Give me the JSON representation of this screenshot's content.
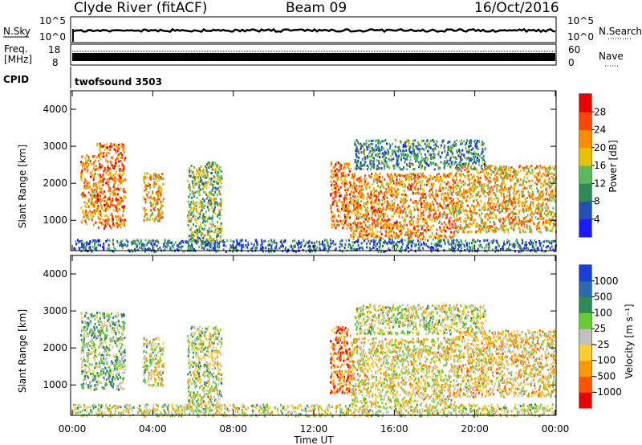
{
  "header": {
    "station": "Clyde River (fitACF)",
    "beam": "Beam 09",
    "date": "16/Oct/2016"
  },
  "nsky_panel": {
    "left_label": "N.Sky",
    "left_ticks": [
      "10^5",
      "10^0"
    ],
    "right_label": "N.Search",
    "right_ticks": [
      "10^5",
      "10^0"
    ]
  },
  "freq_panel": {
    "left_label_1": "Freq.",
    "left_label_2": "[MHz]",
    "left_ticks": [
      "18",
      "8"
    ],
    "right_label": "Nave",
    "right_ticks": [
      "60",
      "0"
    ]
  },
  "cpid": {
    "label": "CPID",
    "program": "twofsound 3503"
  },
  "colors": {
    "power": [
      "#1a1aff",
      "#2350b4",
      "#2e8b57",
      "#5cb85c",
      "#e8c200",
      "#ff8c00",
      "#ff4500",
      "#e60000"
    ],
    "velocity": [
      "#e60000",
      "#ff5500",
      "#ff9900",
      "#ffcc33",
      "#c0c0c0",
      "#66cc33",
      "#2e8b57",
      "#2a6bb0",
      "#1a3fd6"
    ]
  },
  "chart_data": [
    {
      "type": "heatmap",
      "quantity": "Power",
      "ylabel": "Slant Range [km]",
      "yticks": [
        "1000",
        "2000",
        "3000",
        "4000"
      ],
      "ylim": [
        180,
        4500
      ],
      "xlim": [
        0,
        24
      ],
      "colorbar": {
        "label": "Power [dB]",
        "ticks": [
          "4",
          "8",
          "12",
          "16",
          "20",
          "24",
          "28"
        ],
        "range": [
          0,
          32
        ]
      },
      "echo_regions": [
        {
          "t": [
            0.4,
            1.2
          ],
          "range_km": [
            900,
            2800
          ],
          "typical_db": 22
        },
        {
          "t": [
            1.2,
            2.6
          ],
          "range_km": [
            800,
            3100
          ],
          "typical_db": 24
        },
        {
          "t": [
            3.5,
            4.5
          ],
          "range_km": [
            1000,
            2300
          ],
          "typical_db": 20
        },
        {
          "t": [
            5.7,
            7.4
          ],
          "range_km": [
            400,
            2600
          ],
          "typical_db": 14
        },
        {
          "t": [
            12.8,
            13.8
          ],
          "range_km": [
            800,
            2600
          ],
          "typical_db": 24
        },
        {
          "t": [
            13.8,
            19.0
          ],
          "range_km": [
            500,
            2300
          ],
          "typical_db": 22
        },
        {
          "t": [
            14.0,
            20.5
          ],
          "range_km": [
            2400,
            3200
          ],
          "typical_db": 10
        },
        {
          "t": [
            19.0,
            24.0
          ],
          "range_km": [
            700,
            2500
          ],
          "typical_db": 20
        },
        {
          "t": [
            0.0,
            24.0
          ],
          "range_km": [
            180,
            500
          ],
          "typical_db": 8
        }
      ]
    },
    {
      "type": "heatmap",
      "quantity": "Velocity",
      "xlabel": "Time UT",
      "ylabel": "Slant Range [km]",
      "xticks": [
        "00:00",
        "04:00",
        "08:00",
        "12:00",
        "16:00",
        "20:00",
        "00:00"
      ],
      "yticks": [
        "1000",
        "2000",
        "3000",
        "4000"
      ],
      "ylim": [
        180,
        4500
      ],
      "xlim": [
        0,
        24
      ],
      "colorbar": {
        "label": "Velocity [m s⁻¹]",
        "ticks": [
          "-1000",
          "-500",
          "-100",
          "-25",
          "25",
          "100",
          "500",
          "1000"
        ],
        "range": [
          -1500,
          1500
        ]
      },
      "echo_regions": [
        {
          "t": [
            0.4,
            2.6
          ],
          "range_km": [
            900,
            3000
          ],
          "typical_velocity": 300
        },
        {
          "t": [
            3.5,
            4.5
          ],
          "range_km": [
            1000,
            2300
          ],
          "typical_velocity": -100
        },
        {
          "t": [
            5.7,
            7.4
          ],
          "range_km": [
            400,
            2600
          ],
          "typical_velocity": 50
        },
        {
          "t": [
            12.8,
            13.8
          ],
          "range_km": [
            800,
            2600
          ],
          "typical_velocity": -800
        },
        {
          "t": [
            13.8,
            19.0
          ],
          "range_km": [
            500,
            2300
          ],
          "typical_velocity": -200
        },
        {
          "t": [
            14.0,
            20.5
          ],
          "range_km": [
            2400,
            3200
          ],
          "typical_velocity": 0
        },
        {
          "t": [
            19.0,
            24.0
          ],
          "range_km": [
            700,
            2500
          ],
          "typical_velocity": -300
        },
        {
          "t": [
            0.0,
            24.0
          ],
          "range_km": [
            180,
            500
          ],
          "typical_velocity": -50
        }
      ]
    }
  ]
}
